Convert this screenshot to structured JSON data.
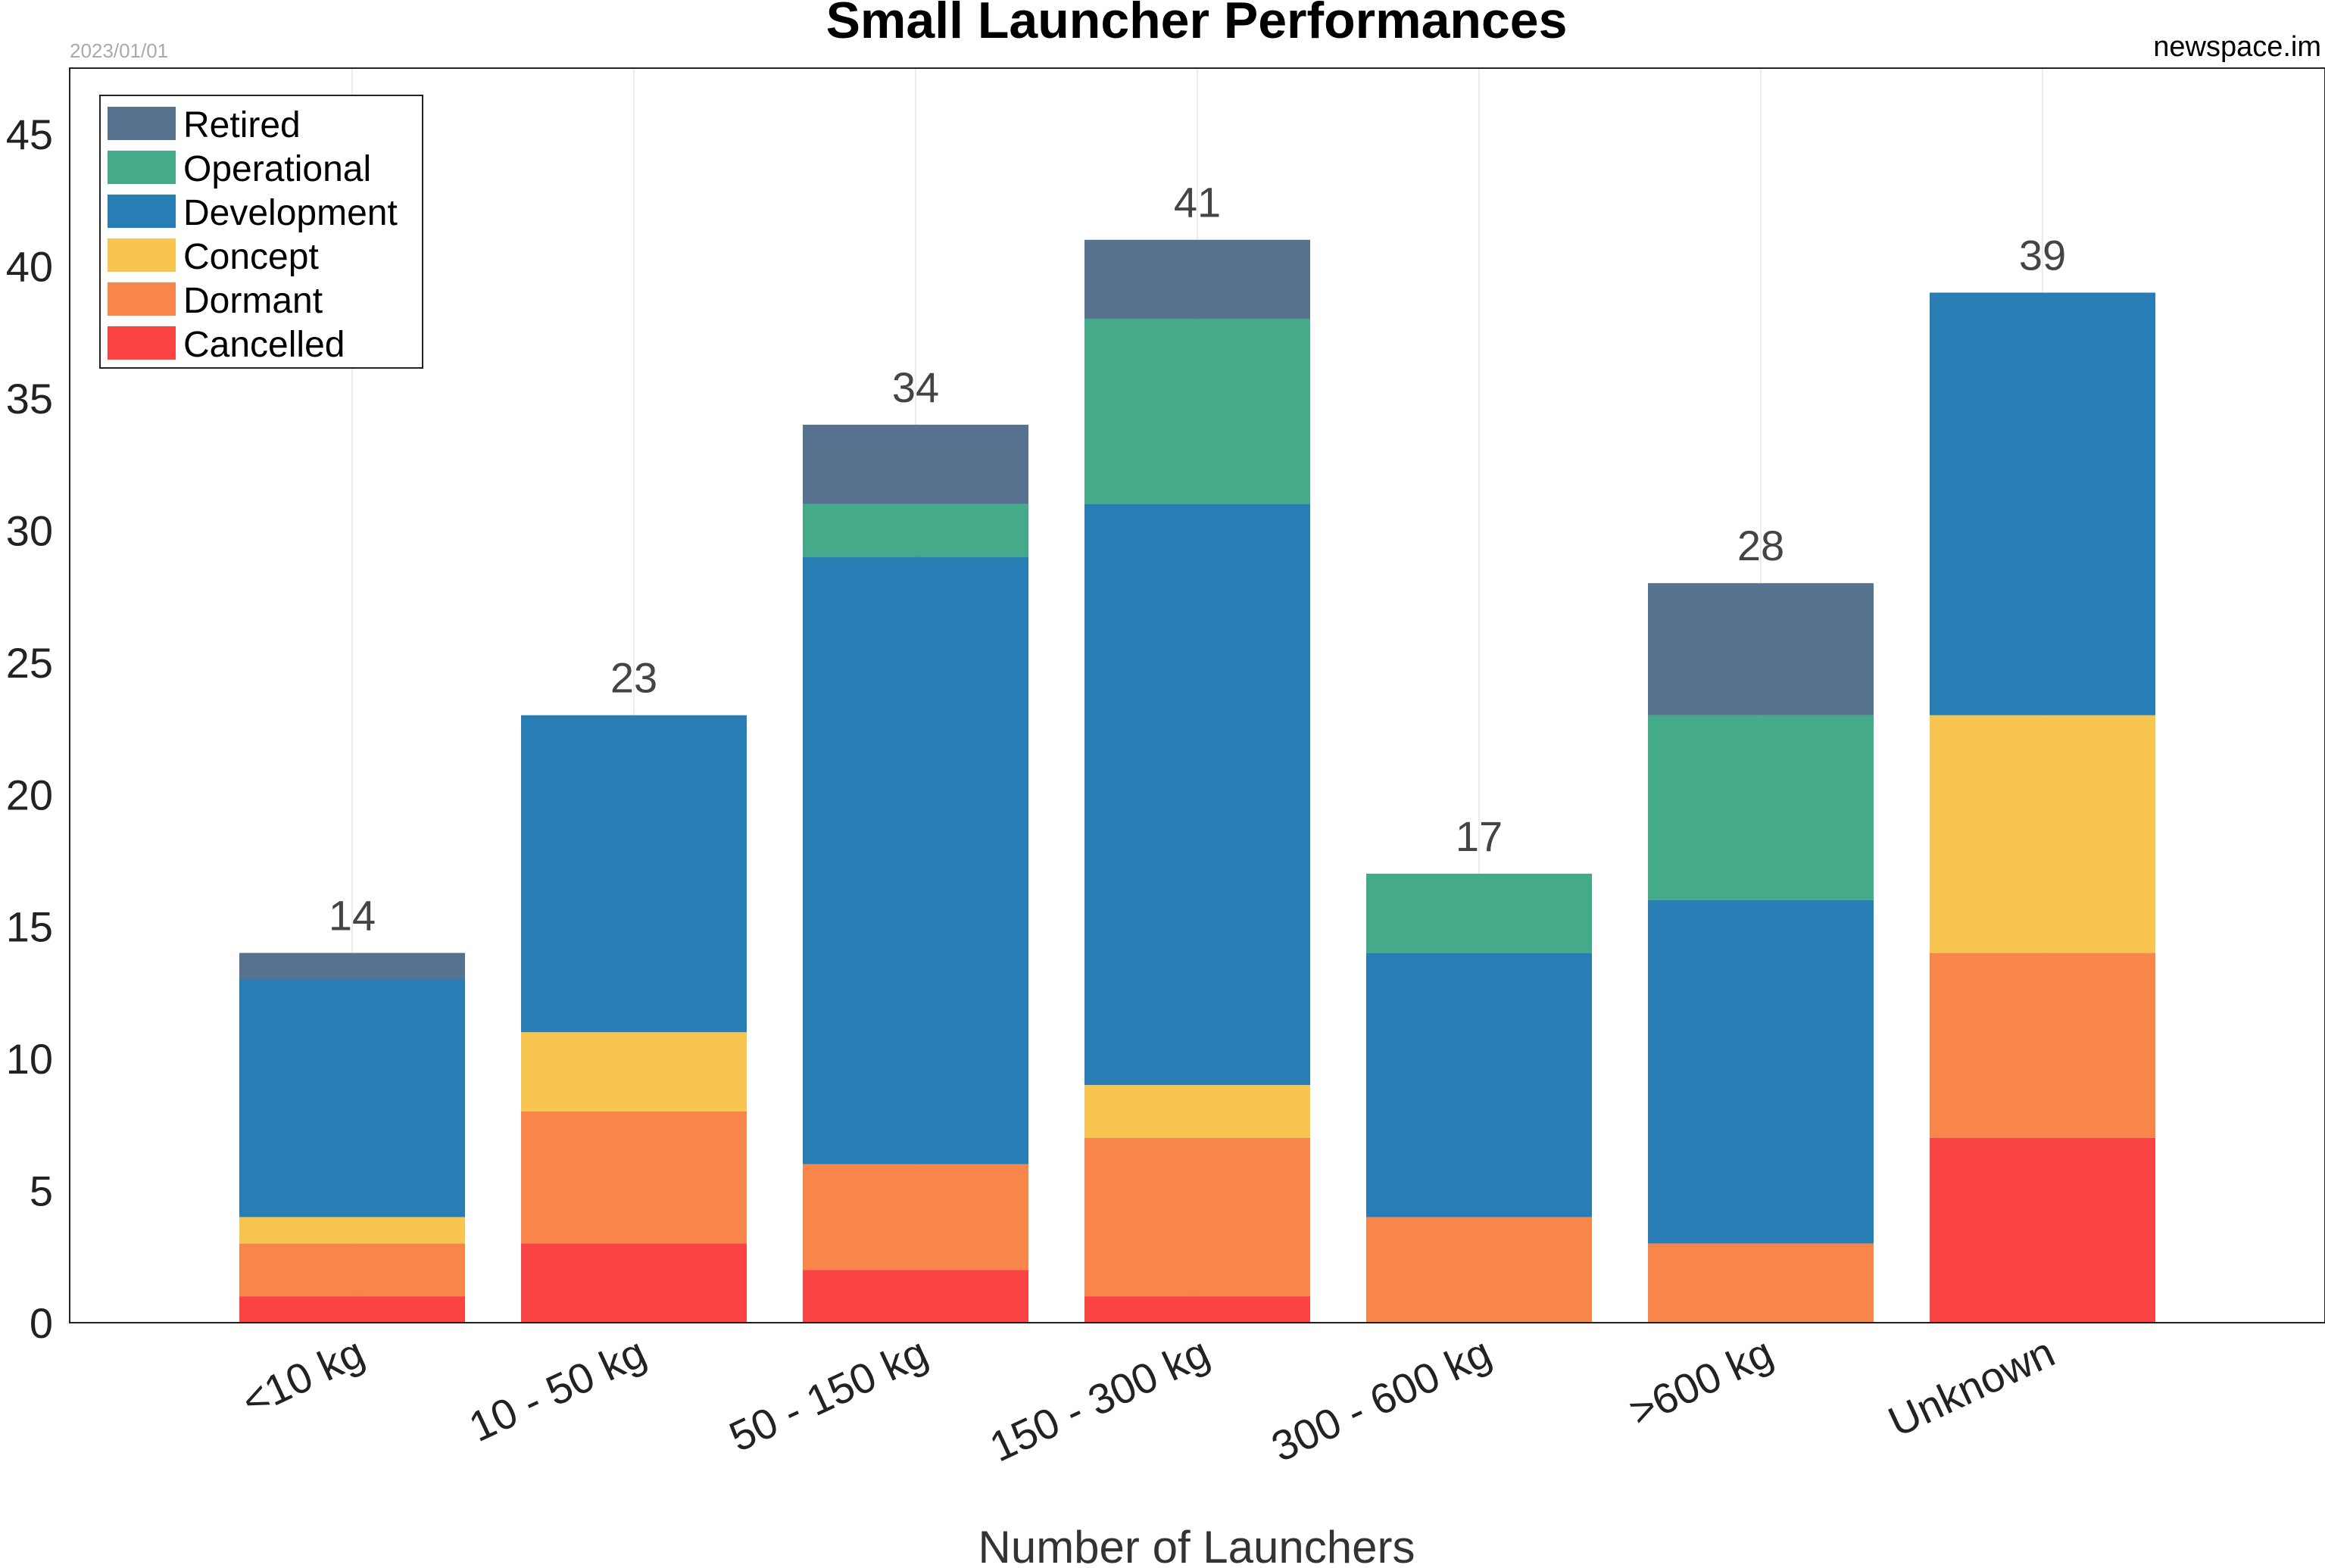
{
  "header": {
    "title": "Small Launcher Performances",
    "date": "2023/01/01",
    "source": "newspace.im"
  },
  "chart_data": {
    "type": "bar",
    "stacked": true,
    "title": "Small Launcher Performances",
    "xlabel": "Number of Launchers",
    "ylabel": "",
    "ylim": [
      0,
      47.5
    ],
    "yticks": [
      0,
      5,
      10,
      15,
      20,
      25,
      30,
      35,
      40,
      45
    ],
    "grid": "vertical",
    "legend_position": "top-left",
    "categories": [
      "<10 kg",
      "10 - 50 kg",
      "50 - 150 kg",
      "150 - 300 kg",
      "300 - 600 kg",
      ">600 kg",
      "Unknown"
    ],
    "series": [
      {
        "name": "Cancelled",
        "color": "#fa4343",
        "values": [
          1,
          3,
          2,
          1,
          0,
          0,
          7
        ]
      },
      {
        "name": "Dormant",
        "color": "#f8864b",
        "values": [
          2,
          5,
          4,
          6,
          4,
          3,
          7
        ]
      },
      {
        "name": "Concept",
        "color": "#f8c551",
        "values": [
          1,
          3,
          0,
          2,
          0,
          0,
          9
        ]
      },
      {
        "name": "Development",
        "color": "#287db4",
        "values": [
          9,
          12,
          23,
          22,
          10,
          13,
          16
        ]
      },
      {
        "name": "Operational",
        "color": "#44aa89",
        "values": [
          0,
          0,
          2,
          7,
          3,
          7,
          0
        ]
      },
      {
        "name": "Retired",
        "color": "#56728f",
        "values": [
          1,
          0,
          3,
          3,
          0,
          5,
          0
        ]
      }
    ],
    "totals": [
      14,
      23,
      34,
      41,
      17,
      28,
      39
    ],
    "legend_order": [
      "Retired",
      "Operational",
      "Development",
      "Concept",
      "Dormant",
      "Cancelled"
    ]
  }
}
